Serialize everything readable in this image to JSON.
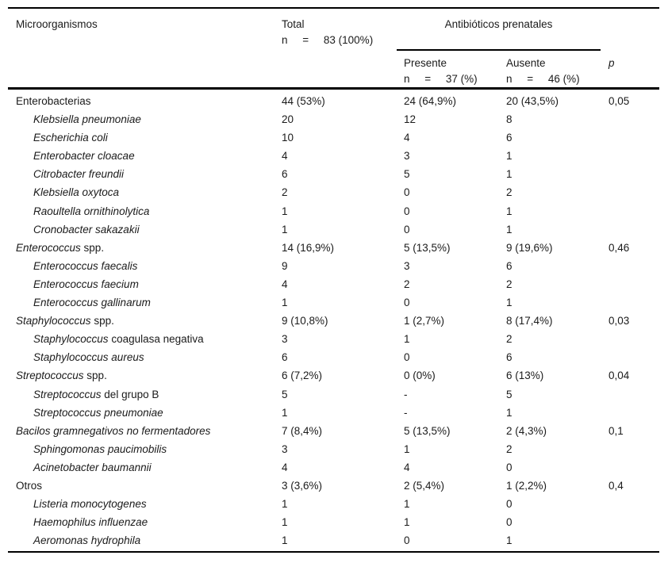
{
  "header": {
    "microorganisms": "Microorganismos",
    "total_label": "Total",
    "total_n": "n     =     83 (100%)",
    "antibiotics_label": "Antibióticos prenatales",
    "present_label": "Presente",
    "present_n": "n     =     37 (%)",
    "absent_label": "Ausente",
    "absent_n": "n     =     46 (%)",
    "p_label": "p"
  },
  "rows": [
    {
      "name_italic": "",
      "name_roman": "Enterobacterias",
      "indent": 0,
      "total": "44 (53%)",
      "present": "24 (64,9%)",
      "absent": "20 (43,5%)",
      "p": "0,05"
    },
    {
      "name_italic": "Klebsiella pneumoniae",
      "name_roman": "",
      "indent": 1,
      "total": "20",
      "present": "12",
      "absent": "8",
      "p": ""
    },
    {
      "name_italic": "Escherichia coli",
      "name_roman": "",
      "indent": 1,
      "total": "10",
      "present": "4",
      "absent": "6",
      "p": ""
    },
    {
      "name_italic": "Enterobacter cloacae",
      "name_roman": "",
      "indent": 1,
      "total": "4",
      "present": "3",
      "absent": "1",
      "p": ""
    },
    {
      "name_italic": "Citrobacter freundii",
      "name_roman": "",
      "indent": 1,
      "total": "6",
      "present": "5",
      "absent": "1",
      "p": ""
    },
    {
      "name_italic": "Klebsiella oxytoca",
      "name_roman": "",
      "indent": 1,
      "total": "2",
      "present": "0",
      "absent": "2",
      "p": ""
    },
    {
      "name_italic": "Raoultella ornithinolytica",
      "name_roman": "",
      "indent": 1,
      "total": "1",
      "present": "0",
      "absent": "1",
      "p": ""
    },
    {
      "name_italic": "Cronobacter sakazakii",
      "name_roman": "",
      "indent": 1,
      "total": "1",
      "present": "0",
      "absent": "1",
      "p": ""
    },
    {
      "name_italic": "Enterococcus",
      "name_roman": " spp.",
      "indent": 0,
      "total": "14 (16,9%)",
      "present": "5 (13,5%)",
      "absent": "9 (19,6%)",
      "p": "0,46"
    },
    {
      "name_italic": "Enterococcus faecalis",
      "name_roman": "",
      "indent": 1,
      "total": "9",
      "present": "3",
      "absent": "6",
      "p": ""
    },
    {
      "name_italic": "Enterococcus faecium",
      "name_roman": "",
      "indent": 1,
      "total": "4",
      "present": "2",
      "absent": "2",
      "p": ""
    },
    {
      "name_italic": "Enterococcus gallinarum",
      "name_roman": "",
      "indent": 1,
      "total": "1",
      "present": "0",
      "absent": "1",
      "p": ""
    },
    {
      "name_italic": "Staphylococcus",
      "name_roman": " spp.",
      "indent": 0,
      "total": "9 (10,8%)",
      "present": "1 (2,7%)",
      "absent": "8 (17,4%)",
      "p": "0,03"
    },
    {
      "name_italic": "Staphylococcus",
      "name_roman": " coagulasa negativa",
      "indent": 1,
      "total": "3",
      "present": "1",
      "absent": "2",
      "p": ""
    },
    {
      "name_italic": "Staphylococcus aureus",
      "name_roman": "",
      "indent": 1,
      "total": "6",
      "present": "0",
      "absent": "6",
      "p": ""
    },
    {
      "name_italic": "Streptococcus",
      "name_roman": " spp.",
      "indent": 0,
      "total": "6 (7,2%)",
      "present": "0 (0%)",
      "absent": "6 (13%)",
      "p": "0,04"
    },
    {
      "name_italic": "Streptococcus",
      "name_roman": " del grupo B",
      "indent": 1,
      "total": "5",
      "present": "-",
      "absent": "5",
      "p": ""
    },
    {
      "name_italic": "Streptococcus pneumoniae",
      "name_roman": "",
      "indent": 1,
      "total": "1",
      "present": "-",
      "absent": "1",
      "p": ""
    },
    {
      "name_italic": "Bacilos gramnegativos no fermentadores",
      "name_roman": "",
      "indent": 0,
      "total": "7 (8,4%)",
      "present": "5 (13,5%)",
      "absent": "2 (4,3%)",
      "p": "0,1"
    },
    {
      "name_italic": "Sphingomonas paucimobilis",
      "name_roman": "",
      "indent": 1,
      "total": "3",
      "present": "1",
      "absent": "2",
      "p": ""
    },
    {
      "name_italic": "Acinetobacter baumannii",
      "name_roman": "",
      "indent": 1,
      "total": "4",
      "present": "4",
      "absent": "0",
      "p": ""
    },
    {
      "name_italic": "",
      "name_roman": "Otros",
      "indent": 0,
      "total": "3 (3,6%)",
      "present": "2 (5,4%)",
      "absent": "1 (2,2%)",
      "p": "0,4"
    },
    {
      "name_italic": "Listeria monocytogenes",
      "name_roman": "",
      "indent": 1,
      "total": "1",
      "present": "1",
      "absent": "0",
      "p": ""
    },
    {
      "name_italic": "Haemophilus influenzae",
      "name_roman": "",
      "indent": 1,
      "total": "1",
      "present": "1",
      "absent": "0",
      "p": ""
    },
    {
      "name_italic": "Aeromonas hydrophila",
      "name_roman": "",
      "indent": 1,
      "total": "1",
      "present": "0",
      "absent": "1",
      "p": ""
    }
  ],
  "colors": {
    "text": "#1b1b1b",
    "rule_lines": "#000000",
    "background": "#ffffff"
  }
}
